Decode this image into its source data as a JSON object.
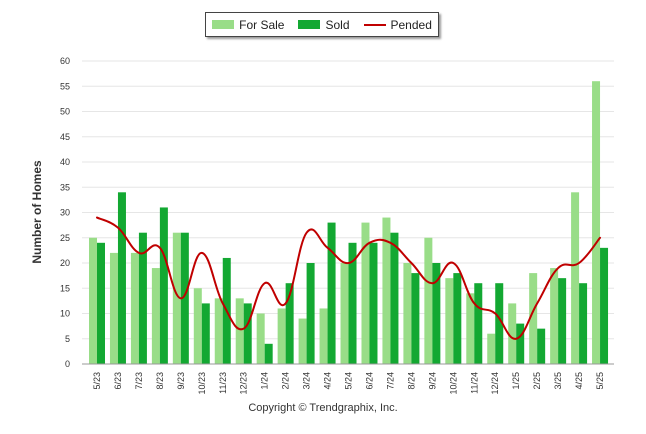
{
  "chart_data": {
    "type": "bar",
    "categories": [
      "5/23",
      "6/23",
      "7/23",
      "8/23",
      "9/23",
      "10/23",
      "11/23",
      "12/23",
      "1/24",
      "2/24",
      "3/24",
      "4/24",
      "5/24",
      "6/24",
      "7/24",
      "8/24",
      "9/24",
      "10/24",
      "11/24",
      "12/24",
      "1/25",
      "2/25",
      "3/25",
      "4/25",
      "5/25"
    ],
    "series": [
      {
        "name": "For Sale",
        "type": "bar",
        "color": "#99dd88",
        "values": [
          25,
          22,
          22,
          19,
          26,
          15,
          13,
          13,
          10,
          11,
          9,
          11,
          20,
          28,
          29,
          20,
          25,
          17,
          14,
          6,
          12,
          18,
          19,
          34,
          56
        ]
      },
      {
        "name": "Sold",
        "type": "bar",
        "color": "#13a832",
        "values": [
          24,
          34,
          26,
          31,
          26,
          12,
          21,
          12,
          4,
          16,
          20,
          28,
          24,
          24,
          26,
          18,
          20,
          18,
          16,
          16,
          8,
          7,
          17,
          16,
          23
        ]
      },
      {
        "name": "Pended",
        "type": "line",
        "color": "#c00000",
        "values": [
          29,
          27,
          22,
          23,
          13,
          22,
          12,
          7,
          16,
          12,
          26,
          23,
          20,
          24,
          24,
          20,
          16,
          20,
          12,
          10,
          5,
          12,
          19,
          20,
          25
        ]
      }
    ],
    "ylabel": "Number of Homes",
    "xlabel": "",
    "ylim": [
      0,
      60
    ],
    "yticks": [
      0,
      5,
      10,
      15,
      20,
      25,
      30,
      35,
      40,
      45,
      50,
      55,
      60
    ],
    "grid": true,
    "legend_position": "top-center"
  },
  "legend": {
    "for_sale": "For Sale",
    "sold": "Sold",
    "pended": "Pended"
  },
  "axis": {
    "ylabel": "Number of Homes"
  },
  "footer": {
    "copyright": "Copyright © Trendgraphix, Inc."
  }
}
